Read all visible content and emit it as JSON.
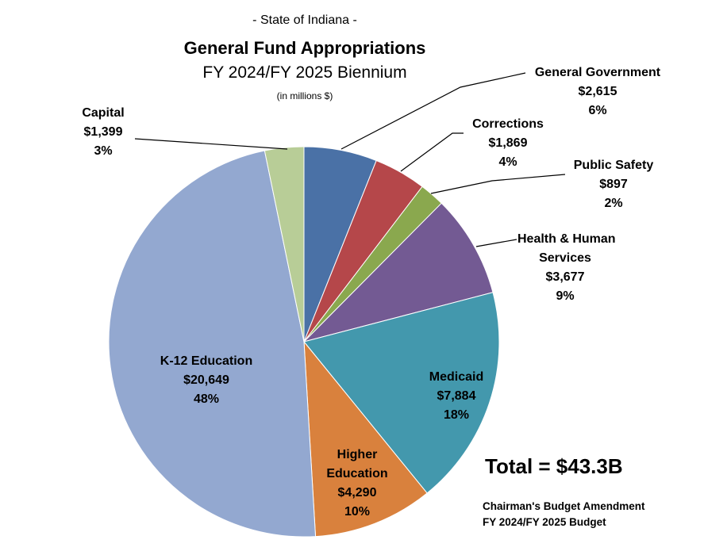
{
  "chart_data": {
    "type": "pie",
    "pretitle": "- State of Indiana -",
    "title": "General Fund Appropriations",
    "subtitle": "FY 2024/FY 2025 Biennium",
    "units": "(in millions $)",
    "slices": [
      {
        "name": "General Government",
        "label_lines": [
          "General Government"
        ],
        "value_label": "$2,615",
        "value": 2615,
        "percent_label": "6%",
        "color": "#4a71a6"
      },
      {
        "name": "Corrections",
        "label_lines": [
          "Corrections"
        ],
        "value_label": "$1,869",
        "value": 1869,
        "percent_label": "4%",
        "color": "#b5474a"
      },
      {
        "name": "Public Safety",
        "label_lines": [
          "Public Safety"
        ],
        "value_label": "$897",
        "value": 897,
        "percent_label": "2%",
        "color": "#8aa84e"
      },
      {
        "name": "Health & Human Services",
        "label_lines": [
          "Health & Human",
          "Services"
        ],
        "value_label": "$3,677",
        "value": 3677,
        "percent_label": "9%",
        "color": "#735a93"
      },
      {
        "name": "Medicaid",
        "label_lines": [
          "Medicaid"
        ],
        "value_label": "$7,884",
        "value": 7884,
        "percent_label": "18%",
        "color": "#4398ad"
      },
      {
        "name": "Higher Education",
        "label_lines": [
          "Higher",
          "Education"
        ],
        "value_label": "$4,290",
        "value": 4290,
        "percent_label": "10%",
        "color": "#d9813d"
      },
      {
        "name": "K-12 Education",
        "label_lines": [
          "K-12 Education"
        ],
        "value_label": "$20,649",
        "value": 20649,
        "percent_label": "48%",
        "color": "#93a8d0"
      },
      {
        "name": "Capital",
        "label_lines": [
          "Capital"
        ],
        "value_label": "$1,399",
        "value": 1399,
        "percent_label": "3%",
        "color": "#b8cd97"
      }
    ],
    "total_label": "Total = $43.3B",
    "footnote": [
      "Chairman's Budget Amendment",
      "FY 2024/FY 2025 Budget"
    ]
  }
}
